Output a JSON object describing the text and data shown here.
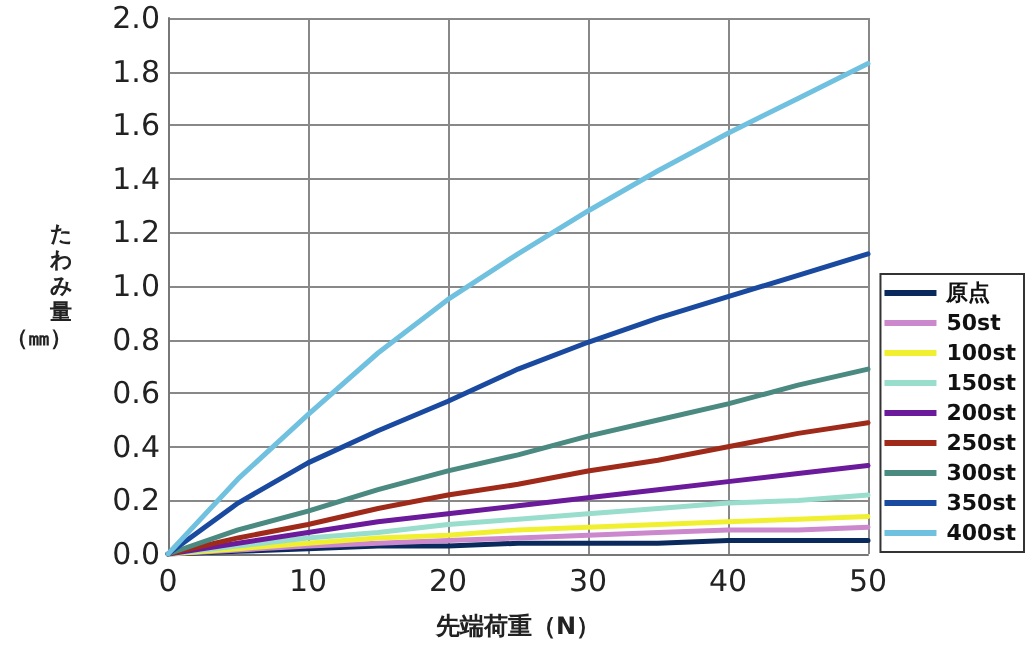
{
  "chart_data": {
    "type": "line",
    "xlabel": "先端荷重（N）",
    "ylabel": "たわみ量（㎜）",
    "x": [
      0,
      5,
      10,
      15,
      20,
      25,
      30,
      35,
      40,
      45,
      50
    ],
    "xlim": [
      0,
      50
    ],
    "xticks": [
      0,
      10,
      20,
      30,
      40,
      50
    ],
    "ylim": [
      0,
      2.0
    ],
    "yticks": [
      {
        "value": 0,
        "label": "0.0"
      },
      {
        "value": 0.2,
        "label": "0.2"
      },
      {
        "value": 0.4,
        "label": "0.4"
      },
      {
        "value": 0.6,
        "label": "0.6"
      },
      {
        "value": 0.8,
        "label": "0.8"
      },
      {
        "value": 1.0,
        "label": "1.0"
      },
      {
        "value": 1.2,
        "label": "1.2"
      },
      {
        "value": 1.4,
        "label": "1.4"
      },
      {
        "value": 1.6,
        "label": "1.6"
      },
      {
        "value": 1.8,
        "label": "1.8"
      },
      {
        "value": 2.0,
        "label": "2.0"
      }
    ],
    "grid": true,
    "legend": "right",
    "marker": "none",
    "line_style": "solid",
    "series": [
      {
        "name": "原点",
        "color": "#0a2a5e",
        "values": [
          0,
          0.01,
          0.02,
          0.03,
          0.03,
          0.04,
          0.04,
          0.04,
          0.05,
          0.05,
          0.05
        ]
      },
      {
        "name": "50st",
        "color": "#cc88cc",
        "values": [
          0,
          0.015,
          0.03,
          0.04,
          0.05,
          0.06,
          0.07,
          0.08,
          0.09,
          0.09,
          0.1
        ]
      },
      {
        "name": "100st",
        "color": "#f0f030",
        "values": [
          0,
          0.02,
          0.04,
          0.06,
          0.07,
          0.09,
          0.1,
          0.11,
          0.12,
          0.13,
          0.14
        ]
      },
      {
        "name": "150st",
        "color": "#99ddcc",
        "values": [
          0,
          0.03,
          0.06,
          0.08,
          0.11,
          0.13,
          0.15,
          0.17,
          0.19,
          0.2,
          0.22
        ]
      },
      {
        "name": "200st",
        "color": "#6a1a9a",
        "values": [
          0,
          0.04,
          0.08,
          0.12,
          0.15,
          0.18,
          0.21,
          0.24,
          0.27,
          0.3,
          0.33
        ]
      },
      {
        "name": "250st",
        "color": "#a02a1a",
        "values": [
          0,
          0.06,
          0.11,
          0.17,
          0.22,
          0.26,
          0.31,
          0.35,
          0.4,
          0.45,
          0.49
        ]
      },
      {
        "name": "300st",
        "color": "#4a8a80",
        "values": [
          0,
          0.09,
          0.16,
          0.24,
          0.31,
          0.37,
          0.44,
          0.5,
          0.56,
          0.63,
          0.69
        ]
      },
      {
        "name": "350st",
        "color": "#1a4aa0",
        "values": [
          0,
          0.19,
          0.34,
          0.46,
          0.57,
          0.69,
          0.79,
          0.88,
          0.96,
          1.04,
          1.12
        ]
      },
      {
        "name": "400st",
        "color": "#70c0e0",
        "values": [
          0,
          0.28,
          0.52,
          0.75,
          0.95,
          1.12,
          1.28,
          1.43,
          1.57,
          1.7,
          1.83
        ]
      }
    ]
  }
}
